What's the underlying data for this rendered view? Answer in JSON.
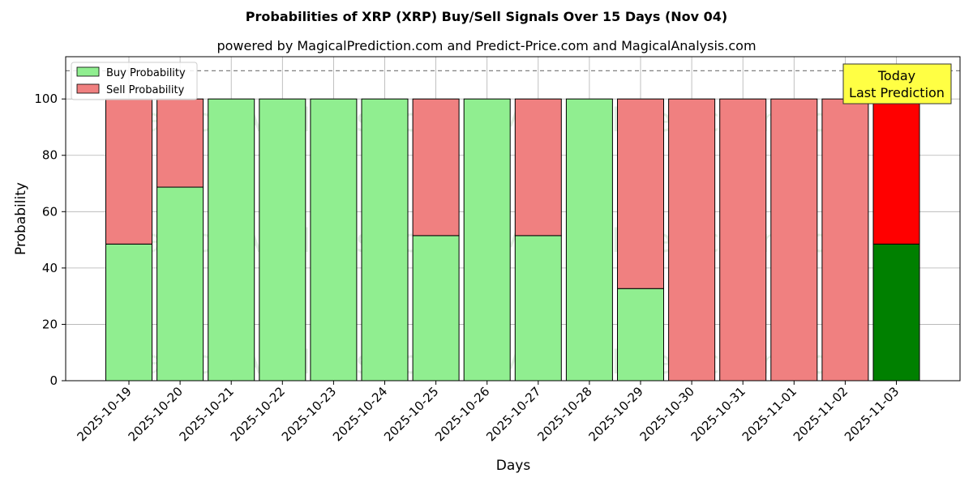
{
  "chart_data": {
    "type": "bar",
    "stacked": true,
    "title": "Probabilities of XRP (XRP) Buy/Sell Signals Over 15 Days (Nov 04)",
    "subtitle": "powered by MagicalPrediction.com and Predict-Price.com and MagicalAnalysis.com",
    "xlabel": "Days",
    "ylabel": "Probability",
    "ylim": [
      0,
      115
    ],
    "yticks": [
      0,
      20,
      40,
      60,
      80,
      100
    ],
    "reference_line": 110,
    "grid": true,
    "legend_position": "top-left",
    "categories": [
      "2025-10-19",
      "2025-10-20",
      "2025-10-21",
      "2025-10-22",
      "2025-10-23",
      "2025-10-24",
      "2025-10-25",
      "2025-10-26",
      "2025-10-27",
      "2025-10-28",
      "2025-10-29",
      "2025-10-30",
      "2025-10-31",
      "2025-11-01",
      "2025-11-02",
      "2025-11-03"
    ],
    "series": [
      {
        "name": "Buy Probability",
        "color": "#90ee90",
        "values": [
          48.5,
          68.7,
          100,
          100,
          100,
          100,
          51.5,
          100,
          51.5,
          100,
          32.7,
          0,
          0,
          0,
          0,
          48.5
        ]
      },
      {
        "name": "Sell Probability",
        "color": "#f08080",
        "values": [
          51.5,
          31.3,
          0,
          0,
          0,
          0,
          48.5,
          0,
          48.5,
          0,
          67.3,
          100,
          100,
          100,
          100,
          51.5
        ]
      }
    ],
    "highlight": {
      "index": 15,
      "buy_color": "#008000",
      "sell_color": "#ff0000"
    },
    "annotation": {
      "line1": "Today",
      "line2": "Last Prediction",
      "background": "#ffff44"
    },
    "watermarks": [
      "MagicalAnalysis.com",
      "MagicalPrediction.com"
    ]
  }
}
